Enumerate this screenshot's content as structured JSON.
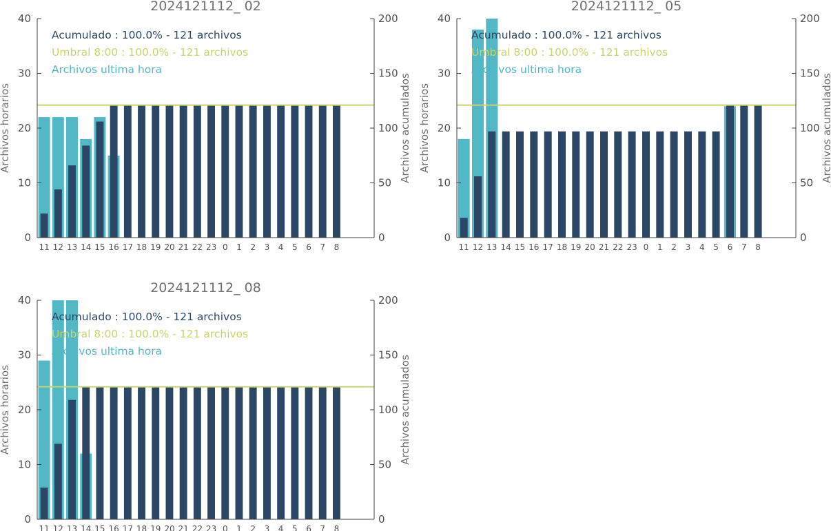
{
  "colors": {
    "hourly": "#52b8c6",
    "cumulative": "#2c4766",
    "threshold": "#c8d46a",
    "axis": "#404040"
  },
  "chart_data": [
    {
      "type": "bar",
      "title": "2024121112_ 02",
      "ylabel_left": "Archivos horarios",
      "ylabel_right": "Archivos acumulados",
      "ylim_left": [
        0,
        40
      ],
      "ylim_right": [
        0,
        200
      ],
      "yticks_left": [
        "0",
        "10",
        "20",
        "30",
        "40"
      ],
      "yticks_right": [
        "0",
        "50",
        "100",
        "150",
        "200"
      ],
      "categories": [
        "11",
        "12",
        "13",
        "14",
        "15",
        "16",
        "17",
        "18",
        "19",
        "20",
        "21",
        "22",
        "23",
        "0",
        "1",
        "2",
        "3",
        "4",
        "5",
        "6",
        "7",
        "8"
      ],
      "legend": [
        "Acumulado : 100.0% - 121 archivos",
        "Umbral 8:00 : 100.0% - 121 archivos",
        "Archivos ultima hora"
      ],
      "threshold": 121,
      "series": [
        {
          "name": "Archivos ultima hora",
          "axis": "left",
          "values": [
            22,
            22,
            22,
            18,
            22,
            15,
            0,
            0,
            0,
            0,
            0,
            0,
            0,
            0,
            0,
            0,
            0,
            0,
            0,
            0,
            0,
            0
          ]
        },
        {
          "name": "Acumulado",
          "axis": "right",
          "values": [
            22,
            44,
            66,
            84,
            106,
            121,
            121,
            121,
            121,
            121,
            121,
            121,
            121,
            121,
            121,
            121,
            121,
            121,
            121,
            121,
            121,
            121
          ]
        }
      ]
    },
    {
      "type": "bar",
      "title": "2024121112_ 05",
      "ylabel_left": "Archivos horarios",
      "ylabel_right": "Archivos acumulados",
      "ylim_left": [
        0,
        40
      ],
      "ylim_right": [
        0,
        200
      ],
      "yticks_left": [
        "0",
        "10",
        "20",
        "30",
        "40"
      ],
      "yticks_right": [
        "0",
        "50",
        "100",
        "150",
        "200"
      ],
      "categories": [
        "11",
        "12",
        "13",
        "14",
        "15",
        "16",
        "17",
        "18",
        "19",
        "20",
        "21",
        "22",
        "23",
        "0",
        "1",
        "2",
        "3",
        "4",
        "5",
        "6",
        "7",
        "8"
      ],
      "legend": [
        "Acumulado : 100.0% - 121 archivos",
        "Umbral 8:00 : 100.0% - 121 archivos",
        "Archivos ultima hora"
      ],
      "threshold": 121,
      "series": [
        {
          "name": "Archivos ultima hora",
          "axis": "left",
          "values": [
            18,
            38,
            41,
            0,
            0,
            0,
            0,
            0,
            0,
            0,
            0,
            0,
            0,
            0,
            0,
            0,
            0,
            0,
            0,
            24,
            0,
            0
          ]
        },
        {
          "name": "Acumulado",
          "axis": "right",
          "values": [
            18,
            56,
            97,
            97,
            97,
            97,
            97,
            97,
            97,
            97,
            97,
            97,
            97,
            97,
            97,
            97,
            97,
            97,
            97,
            121,
            121,
            121
          ]
        }
      ]
    },
    {
      "type": "bar",
      "title": "2024121112_ 08",
      "ylabel_left": "Archivos horarios",
      "ylabel_right": "Archivos acumulados",
      "ylim_left": [
        0,
        40
      ],
      "ylim_right": [
        0,
        200
      ],
      "yticks_left": [
        "0",
        "10",
        "20",
        "30",
        "40"
      ],
      "yticks_right": [
        "0",
        "50",
        "100",
        "150",
        "200"
      ],
      "categories": [
        "11",
        "12",
        "13",
        "14",
        "15",
        "16",
        "17",
        "18",
        "19",
        "20",
        "21",
        "22",
        "23",
        "0",
        "1",
        "2",
        "3",
        "4",
        "5",
        "6",
        "7",
        "8"
      ],
      "legend": [
        "Acumulado : 100.0% - 121 archivos",
        "Umbral 8:00 : 100.0% - 121 archivos",
        "Archivos ultima hora"
      ],
      "threshold": 121,
      "series": [
        {
          "name": "Archivos ultima hora",
          "axis": "left",
          "values": [
            29,
            40,
            40,
            12,
            0,
            0,
            0,
            0,
            0,
            0,
            0,
            0,
            0,
            0,
            0,
            0,
            0,
            0,
            0,
            0,
            0,
            0
          ]
        },
        {
          "name": "Acumulado",
          "axis": "right",
          "values": [
            29,
            69,
            109,
            121,
            121,
            121,
            121,
            121,
            121,
            121,
            121,
            121,
            121,
            121,
            121,
            121,
            121,
            121,
            121,
            121,
            121,
            121
          ]
        }
      ]
    }
  ]
}
